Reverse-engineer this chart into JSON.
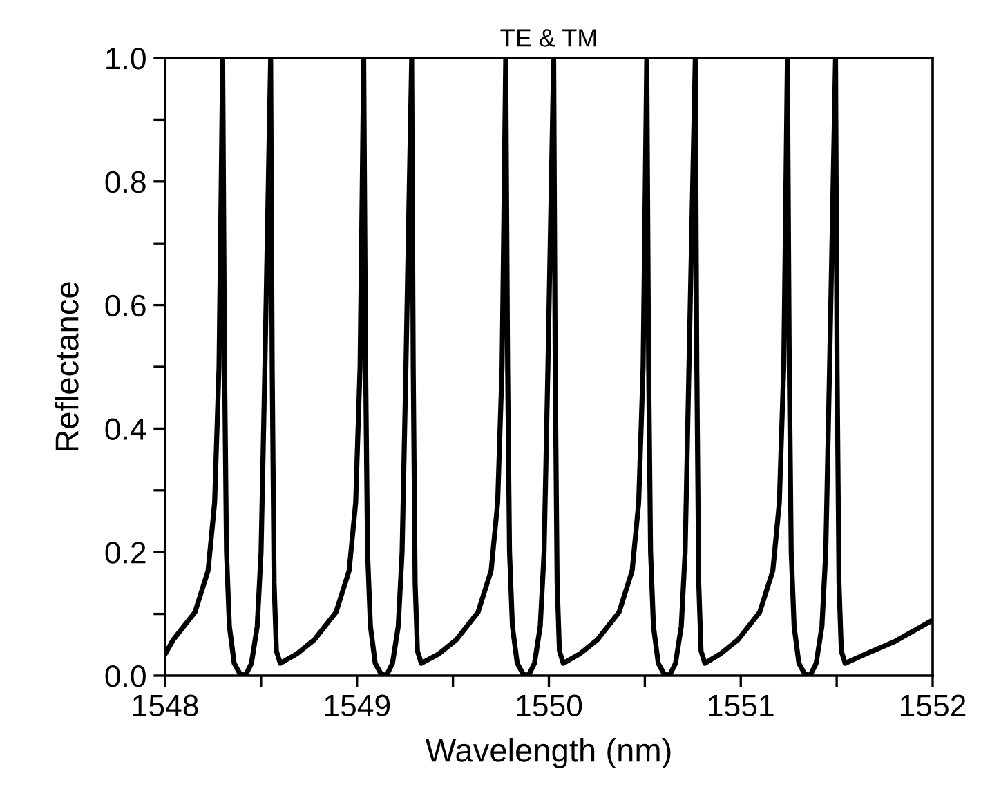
{
  "chart_data": {
    "type": "line",
    "title": "TE & TM",
    "xlabel": "Wavelength (nm)",
    "ylabel": "Reflectance",
    "xlim": [
      1548,
      1552
    ],
    "ylim": [
      0,
      1.0
    ],
    "xticks": [
      1548,
      {
        "value": 1548.5,
        "label": null
      },
      1549,
      {
        "value": 1549.5,
        "label": null
      },
      1550,
      {
        "value": 1550.5,
        "label": null
      },
      1551,
      {
        "value": 1551.5,
        "label": null
      },
      1552
    ],
    "yticks": [
      {
        "value": 0,
        "label": "0.0"
      },
      {
        "value": 0.1,
        "label": null
      },
      0.2,
      {
        "value": 0.3,
        "label": null
      },
      0.4,
      {
        "value": 0.5,
        "label": null
      },
      0.6,
      {
        "value": 0.7,
        "label": null
      },
      0.8,
      {
        "value": 0.9,
        "label": null
      },
      {
        "value": 1.0,
        "label": "1.0"
      }
    ],
    "grid": false,
    "line_style": "solid",
    "marker": "none",
    "series": [
      {
        "color": "#000000",
        "x": [
          1548.0,
          1548.042,
          1548.156,
          1548.224,
          1548.258,
          1548.281,
          1548.29,
          1548.3,
          1548.31,
          1548.32,
          1548.335,
          1548.36,
          1548.39,
          1548.418,
          1548.45,
          1548.48,
          1548.5,
          1548.52,
          1548.55,
          1548.558,
          1548.568,
          1548.58,
          1548.6,
          1548.685,
          1548.777,
          1548.891,
          1548.959,
          1548.993,
          1549.016,
          1549.025,
          1549.035,
          1549.045,
          1549.055,
          1549.07,
          1549.095,
          1549.125,
          1549.153,
          1549.185,
          1549.215,
          1549.235,
          1549.255,
          1549.285,
          1549.293,
          1549.303,
          1549.315,
          1549.335,
          1549.425,
          1549.517,
          1549.631,
          1549.699,
          1549.733,
          1549.756,
          1549.765,
          1549.775,
          1549.785,
          1549.795,
          1549.81,
          1549.835,
          1549.865,
          1549.893,
          1549.925,
          1549.955,
          1549.975,
          1549.995,
          1550.025,
          1550.033,
          1550.043,
          1550.055,
          1550.075,
          1550.16,
          1550.252,
          1550.366,
          1550.434,
          1550.468,
          1550.491,
          1550.5,
          1550.51,
          1550.52,
          1550.53,
          1550.545,
          1550.57,
          1550.6,
          1550.628,
          1550.66,
          1550.69,
          1550.71,
          1550.73,
          1550.763,
          1550.771,
          1550.781,
          1550.793,
          1550.813,
          1550.893,
          1550.985,
          1551.099,
          1551.167,
          1551.201,
          1551.224,
          1551.233,
          1551.243,
          1551.253,
          1551.263,
          1551.278,
          1551.303,
          1551.333,
          1551.361,
          1551.393,
          1551.423,
          1551.443,
          1551.463,
          1551.494,
          1551.502,
          1551.512,
          1551.524,
          1551.544,
          1551.65,
          1551.8,
          1552.0
        ],
        "values": [
          0.035,
          0.058,
          0.103,
          0.17,
          0.28,
          0.5,
          0.73,
          1.0,
          0.5,
          0.2,
          0.08,
          0.02,
          0.003,
          0,
          0.02,
          0.08,
          0.2,
          0.5,
          1.0,
          0.5,
          0.15,
          0.04,
          0.02,
          0.035,
          0.058,
          0.103,
          0.17,
          0.28,
          0.5,
          0.73,
          1.0,
          0.5,
          0.2,
          0.08,
          0.02,
          0.003,
          0,
          0.02,
          0.08,
          0.2,
          0.5,
          1.0,
          0.5,
          0.15,
          0.04,
          0.02,
          0.035,
          0.058,
          0.103,
          0.17,
          0.28,
          0.5,
          0.73,
          1.0,
          0.5,
          0.2,
          0.08,
          0.02,
          0.003,
          0,
          0.02,
          0.08,
          0.2,
          0.5,
          1.0,
          0.5,
          0.15,
          0.04,
          0.02,
          0.035,
          0.058,
          0.103,
          0.17,
          0.28,
          0.5,
          0.73,
          1.0,
          0.5,
          0.2,
          0.08,
          0.02,
          0.003,
          0,
          0.02,
          0.08,
          0.2,
          0.5,
          1.0,
          0.5,
          0.15,
          0.04,
          0.02,
          0.035,
          0.058,
          0.103,
          0.17,
          0.28,
          0.5,
          0.73,
          1.0,
          0.5,
          0.2,
          0.08,
          0.02,
          0.003,
          0,
          0.02,
          0.08,
          0.2,
          0.5,
          1.0,
          0.5,
          0.15,
          0.04,
          0.02,
          0.035,
          0.055,
          0.09
        ]
      }
    ]
  }
}
